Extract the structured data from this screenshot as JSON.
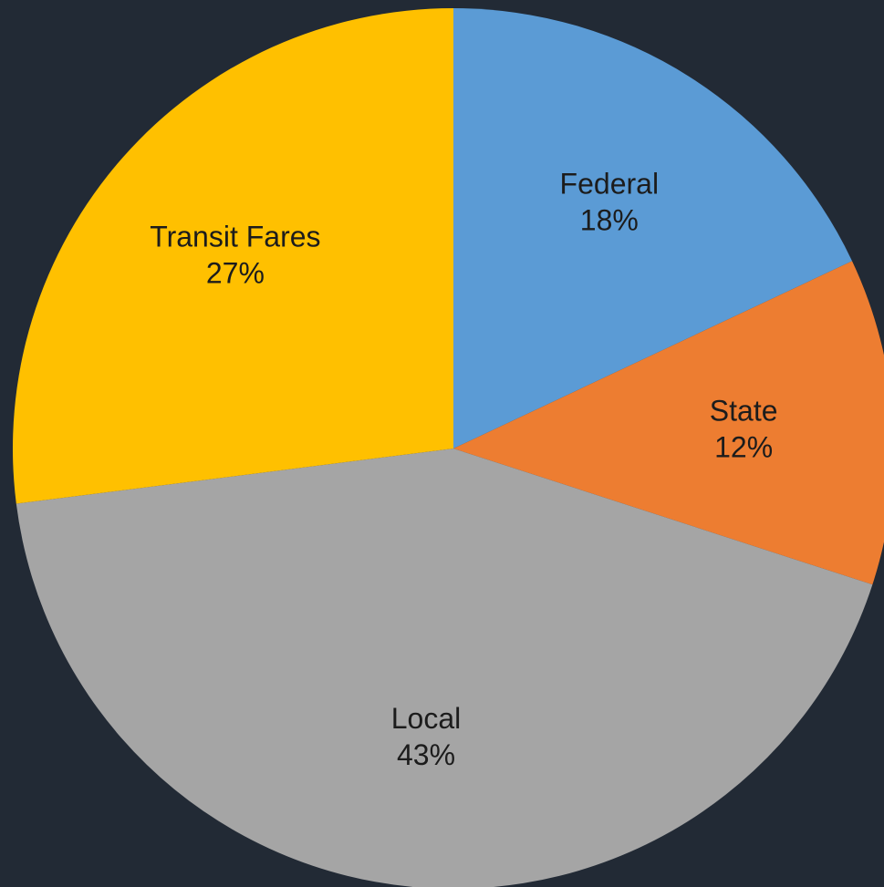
{
  "chart_data": {
    "type": "pie",
    "categories": [
      "Federal",
      "State",
      "Local",
      "Transit Fares"
    ],
    "values": [
      18,
      12,
      43,
      27
    ],
    "value_labels": [
      "18%",
      "12%",
      "43%",
      "27%"
    ],
    "colors": [
      "#5b9bd5",
      "#ed7d31",
      "#a5a5a5",
      "#ffc000"
    ]
  }
}
